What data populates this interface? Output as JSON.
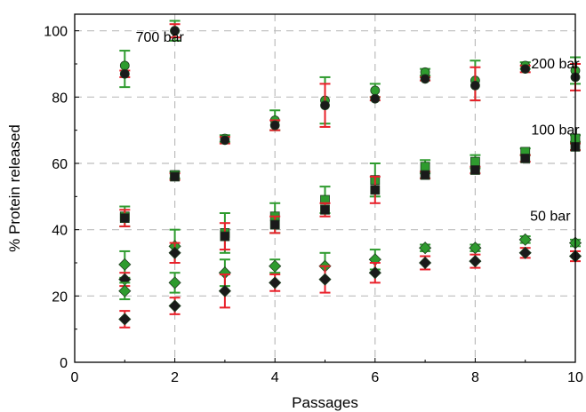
{
  "chart_data": {
    "type": "scatter",
    "xlabel": "Passages",
    "ylabel": "% Protein released",
    "xlim": [
      0,
      10
    ],
    "ylim": [
      0,
      105
    ],
    "xticks": [
      "0",
      "2",
      "4",
      "6",
      "8",
      "10"
    ],
    "yticks": [
      "0",
      "20",
      "40",
      "60",
      "80",
      "100"
    ],
    "grid": "dashed-gray",
    "annotations": [
      {
        "text": "700 bar",
        "x": 1.7,
        "y": 98
      },
      {
        "text": "200 bar",
        "x": 9.6,
        "y": 90
      },
      {
        "text": "100 bar",
        "x": 9.6,
        "y": 70
      },
      {
        "text": "50 bar",
        "x": 9.5,
        "y": 44
      }
    ],
    "colors": {
      "green": "#2e9b2e",
      "red": "#e8202a",
      "dark": "#1a1a1a",
      "grid": "#bdbdbd"
    },
    "series": [
      {
        "marker": "circle",
        "points": [
          {
            "x": 1,
            "y": 89.5,
            "lo": 83,
            "hi": 94,
            "ebar": "green"
          },
          {
            "x": 1,
            "y": 87,
            "lo": 86,
            "hi": 88,
            "ebar": "red"
          },
          {
            "x": 2,
            "y": 100,
            "lo": 97,
            "hi": 103,
            "ebar": "green"
          },
          {
            "x": 2,
            "y": 100,
            "lo": 98,
            "hi": 102,
            "ebar": "red"
          },
          {
            "x": 3,
            "y": 67.5,
            "lo": 66.5,
            "hi": 68.5,
            "ebar": "green"
          },
          {
            "x": 3,
            "y": 67,
            "lo": 66,
            "hi": 68,
            "ebar": "red"
          },
          {
            "x": 4,
            "y": 73,
            "lo": 70,
            "hi": 76,
            "ebar": "green"
          },
          {
            "x": 4,
            "y": 71.5,
            "lo": 70,
            "hi": 73,
            "ebar": "red"
          },
          {
            "x": 5,
            "y": 79,
            "lo": 72,
            "hi": 86,
            "ebar": "green"
          },
          {
            "x": 5,
            "y": 77.5,
            "lo": 71,
            "hi": 84,
            "ebar": "red"
          },
          {
            "x": 6,
            "y": 82,
            "lo": 80,
            "hi": 84,
            "ebar": "green"
          },
          {
            "x": 6,
            "y": 79.5,
            "lo": 79,
            "hi": 80,
            "ebar": "red"
          },
          {
            "x": 7,
            "y": 87.5,
            "lo": 86.5,
            "hi": 88.5,
            "ebar": "green"
          },
          {
            "x": 7,
            "y": 85.5,
            "lo": 85,
            "hi": 86,
            "ebar": "red"
          },
          {
            "x": 8,
            "y": 85,
            "lo": 79,
            "hi": 91,
            "ebar": "green"
          },
          {
            "x": 8,
            "y": 83.5,
            "lo": 79,
            "hi": 89,
            "ebar": "red"
          },
          {
            "x": 9,
            "y": 89.5,
            "lo": 88.5,
            "hi": 90.5,
            "ebar": "green"
          },
          {
            "x": 9,
            "y": 88.5,
            "lo": 87.5,
            "hi": 89.5,
            "ebar": "red"
          },
          {
            "x": 10,
            "y": 88,
            "lo": 84,
            "hi": 92,
            "ebar": "green"
          },
          {
            "x": 10,
            "y": 86,
            "lo": 82,
            "hi": 90,
            "ebar": "red"
          }
        ]
      },
      {
        "marker": "square",
        "points": [
          {
            "x": 1,
            "y": 44,
            "lo": 41,
            "hi": 47,
            "ebar": "green"
          },
          {
            "x": 1,
            "y": 43.5,
            "lo": 41,
            "hi": 46,
            "ebar": "red"
          },
          {
            "x": 2,
            "y": 56.5,
            "lo": 55.5,
            "hi": 57.5,
            "ebar": "green"
          },
          {
            "x": 2,
            "y": 56,
            "lo": 55,
            "hi": 57,
            "ebar": "red"
          },
          {
            "x": 3,
            "y": 39,
            "lo": 33,
            "hi": 45,
            "ebar": "green"
          },
          {
            "x": 3,
            "y": 38,
            "lo": 34,
            "hi": 42,
            "ebar": "red"
          },
          {
            "x": 4,
            "y": 44,
            "lo": 39,
            "hi": 48,
            "ebar": "green"
          },
          {
            "x": 4,
            "y": 41.5,
            "lo": 39,
            "hi": 44,
            "ebar": "red"
          },
          {
            "x": 5,
            "y": 49,
            "lo": 45,
            "hi": 53,
            "ebar": "green"
          },
          {
            "x": 5,
            "y": 46,
            "lo": 44,
            "hi": 48,
            "ebar": "red"
          },
          {
            "x": 6,
            "y": 55,
            "lo": 50,
            "hi": 60,
            "ebar": "green"
          },
          {
            "x": 6,
            "y": 52,
            "lo": 48,
            "hi": 56,
            "ebar": "red"
          },
          {
            "x": 7,
            "y": 59,
            "lo": 57,
            "hi": 61,
            "ebar": "green"
          },
          {
            "x": 7,
            "y": 56.5,
            "lo": 55.5,
            "hi": 57.5,
            "ebar": "red"
          },
          {
            "x": 8,
            "y": 60.5,
            "lo": 58.5,
            "hi": 62.5,
            "ebar": "green"
          },
          {
            "x": 8,
            "y": 58,
            "lo": 57,
            "hi": 59,
            "ebar": "red"
          },
          {
            "x": 9,
            "y": 63.5,
            "lo": 62.5,
            "hi": 64.5,
            "ebar": "green"
          },
          {
            "x": 9,
            "y": 61.5,
            "lo": 60.5,
            "hi": 62.5,
            "ebar": "red"
          },
          {
            "x": 10,
            "y": 67.5,
            "lo": 66.5,
            "hi": 68.5,
            "ebar": "green"
          },
          {
            "x": 10,
            "y": 65,
            "lo": 64,
            "hi": 66,
            "ebar": "red"
          }
        ]
      },
      {
        "marker": "diamond",
        "points": [
          {
            "x": 1,
            "y": 29.5,
            "lo": 25.5,
            "hi": 33.5,
            "ebar": "green"
          },
          {
            "x": 1,
            "y": 25,
            "lo": 23,
            "hi": 27,
            "ebar": "red"
          },
          {
            "x": 1,
            "y": 21.5,
            "lo": 19,
            "hi": 24,
            "ebar": "green"
          },
          {
            "x": 1,
            "y": 13,
            "lo": 10.5,
            "hi": 15.5,
            "ebar": "red"
          },
          {
            "x": 2,
            "y": 35,
            "lo": 30,
            "hi": 40,
            "ebar": "green"
          },
          {
            "x": 2,
            "y": 33,
            "lo": 30,
            "hi": 36,
            "ebar": "red"
          },
          {
            "x": 2,
            "y": 24,
            "lo": 21,
            "hi": 27,
            "ebar": "green"
          },
          {
            "x": 2,
            "y": 17,
            "lo": 14.5,
            "hi": 19.5,
            "ebar": "red"
          },
          {
            "x": 3,
            "y": 27,
            "lo": 23,
            "hi": 31,
            "ebar": "green"
          },
          {
            "x": 3,
            "y": 21.5,
            "lo": 16.5,
            "hi": 26.5,
            "ebar": "red"
          },
          {
            "x": 4,
            "y": 29,
            "lo": 27,
            "hi": 31,
            "ebar": "green"
          },
          {
            "x": 4,
            "y": 24,
            "lo": 21.5,
            "hi": 26.5,
            "ebar": "red"
          },
          {
            "x": 5,
            "y": 29,
            "lo": 25,
            "hi": 33,
            "ebar": "green"
          },
          {
            "x": 5,
            "y": 25,
            "lo": 21,
            "hi": 29,
            "ebar": "red"
          },
          {
            "x": 6,
            "y": 31,
            "lo": 28,
            "hi": 34,
            "ebar": "green"
          },
          {
            "x": 6,
            "y": 27,
            "lo": 24,
            "hi": 30,
            "ebar": "red"
          },
          {
            "x": 7,
            "y": 34.5,
            "lo": 33.5,
            "hi": 35.5,
            "ebar": "green"
          },
          {
            "x": 7,
            "y": 30,
            "lo": 28,
            "hi": 32,
            "ebar": "red"
          },
          {
            "x": 8,
            "y": 34.5,
            "lo": 33.5,
            "hi": 35.5,
            "ebar": "green"
          },
          {
            "x": 8,
            "y": 30.5,
            "lo": 28.5,
            "hi": 32.5,
            "ebar": "red"
          },
          {
            "x": 9,
            "y": 37,
            "lo": 36,
            "hi": 38,
            "ebar": "green"
          },
          {
            "x": 9,
            "y": 33,
            "lo": 31.5,
            "hi": 34.5,
            "ebar": "red"
          },
          {
            "x": 10,
            "y": 36,
            "lo": 35,
            "hi": 37,
            "ebar": "green"
          },
          {
            "x": 10,
            "y": 32,
            "lo": 30.5,
            "hi": 33.5,
            "ebar": "red"
          }
        ]
      }
    ]
  }
}
